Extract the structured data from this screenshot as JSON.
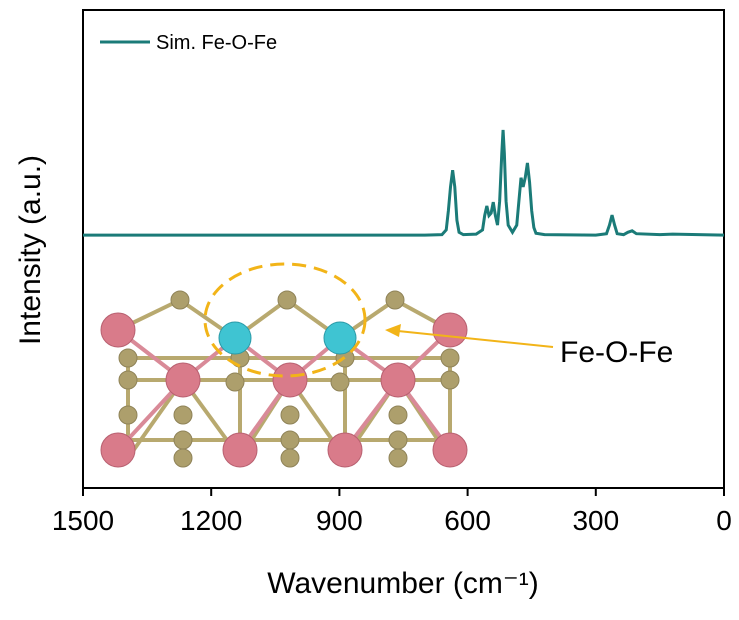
{
  "chart_data": {
    "type": "line",
    "xlabel": "Wavenumber (cm⁻¹)",
    "ylabel": "Intensity (a.u.)",
    "annotation": "Fe-O-Fe",
    "xlim": [
      1500,
      0
    ],
    "xticks": [
      1500,
      1200,
      900,
      600,
      300,
      0
    ],
    "ylim": [
      0,
      100
    ],
    "x": [
      1500,
      700,
      660,
      650,
      645,
      640,
      635,
      630,
      625,
      620,
      610,
      580,
      565,
      560,
      555,
      550,
      545,
      540,
      535,
      530,
      525,
      520,
      517,
      514,
      510,
      505,
      495,
      485,
      480,
      475,
      470,
      465,
      460,
      455,
      450,
      445,
      440,
      420,
      300,
      275,
      268,
      262,
      256,
      250,
      235,
      225,
      215,
      205,
      150,
      120,
      0
    ],
    "series": [
      {
        "name": "Sim. Fe-O-Fe",
        "color": "#1b7b78",
        "values": [
          52.9,
          52.9,
          53.0,
          54,
          58,
          63,
          66.5,
          63,
          56,
          53.5,
          53.0,
          53.1,
          54,
          57,
          59,
          57,
          57.5,
          59.8,
          57,
          55,
          60,
          70,
          74.9,
          70,
          60,
          55,
          53.5,
          55,
          60,
          64.9,
          63,
          65,
          68.0,
          64,
          58,
          54.5,
          53.3,
          53.0,
          52.9,
          53.2,
          55,
          57.1,
          55,
          53.2,
          53.0,
          53.5,
          53.8,
          53.2,
          53.0,
          53.1,
          52.9
        ]
      }
    ],
    "legend": "upper left"
  }
}
